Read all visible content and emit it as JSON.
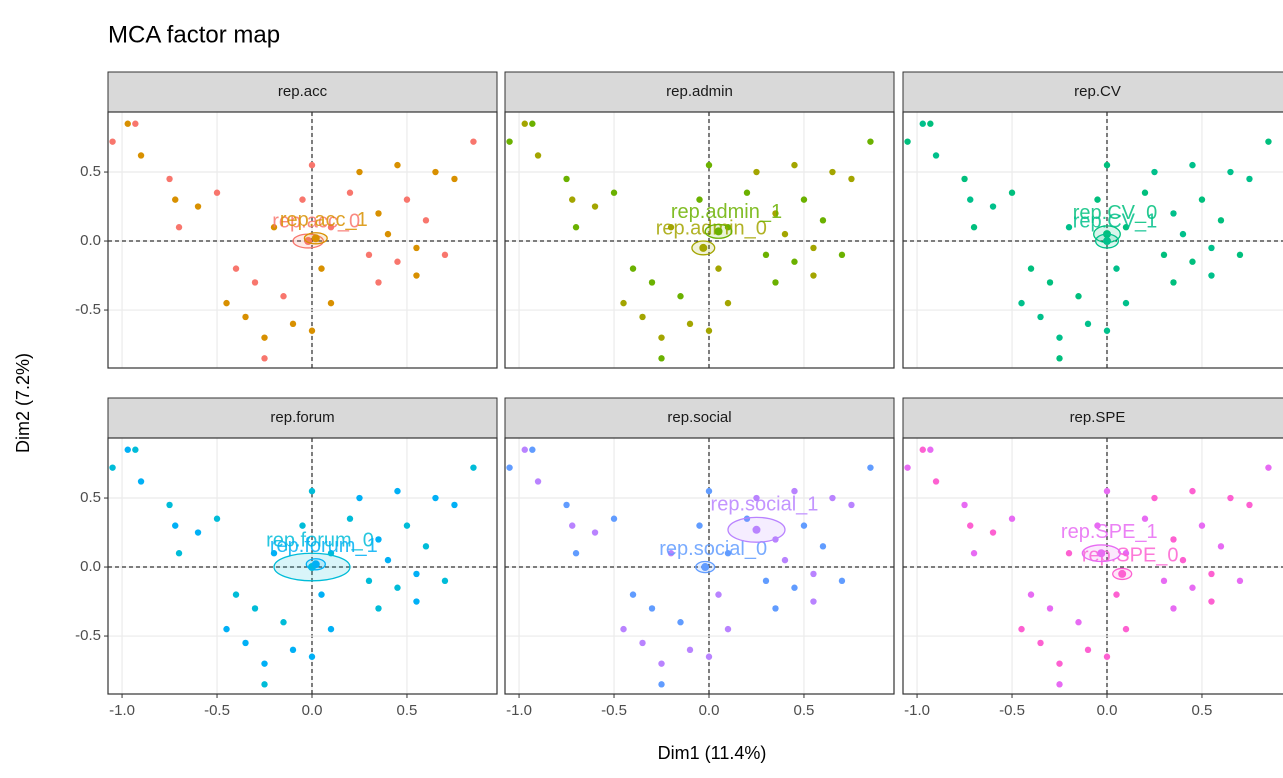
{
  "chart_data": {
    "type": "scatter",
    "title": "MCA factor map",
    "xlabel": "Dim1 (11.4%)",
    "ylabel": "Dim2 (7.2%)",
    "xlim": [
      -1.074,
      0.974
    ],
    "ylim": [
      -0.92,
      0.935
    ],
    "xticks": [
      {
        "value": -1,
        "label": "-1.0"
      },
      -0.5,
      {
        "value": 0,
        "label": "0.0"
      },
      0.5
    ],
    "yticks": [
      -0.5,
      {
        "value": 0,
        "label": "0.0"
      },
      0.5
    ],
    "facets": [
      {
        "title": "rep.acc",
        "series": [
          {
            "name": "rep.acc_0",
            "color": "#F8766D",
            "center": [
              -0.02,
              0.0
            ],
            "ellipse": [
              0.08,
              0.05
            ],
            "x": [
              -1.05,
              -0.93,
              -0.75,
              -0.7,
              -0.5,
              -0.4,
              -0.3,
              -0.25,
              -0.15,
              -0.05,
              0,
              0.1,
              0.2,
              0.3,
              0.35,
              0.45,
              0.5,
              0.6,
              0.7,
              0.85
            ],
            "y": [
              0.72,
              0.85,
              0.45,
              0.1,
              0.35,
              -0.2,
              -0.3,
              -0.85,
              -0.4,
              0.3,
              0.55,
              0.1,
              0.35,
              -0.1,
              -0.3,
              -0.15,
              0.3,
              0.15,
              -0.1,
              0.72
            ]
          },
          {
            "name": "rep.acc_1",
            "color": "#D89000",
            "center": [
              0.02,
              0.02
            ],
            "ellipse": [
              0.06,
              0.04
            ],
            "x": [
              -0.97,
              -0.9,
              -0.72,
              -0.6,
              -0.45,
              -0.35,
              -0.25,
              -0.2,
              -0.1,
              0,
              0.05,
              0.1,
              0.25,
              0.35,
              0.4,
              0.45,
              0.55,
              0.65,
              0.75,
              0.55
            ],
            "y": [
              0.85,
              0.62,
              0.3,
              0.25,
              -0.45,
              -0.55,
              -0.7,
              0.1,
              -0.6,
              -0.65,
              -0.2,
              -0.45,
              0.5,
              0.2,
              0.05,
              0.55,
              -0.05,
              0.5,
              0.45,
              -0.25
            ]
          }
        ]
      },
      {
        "title": "rep.admin",
        "series": [
          {
            "name": "rep.admin_0",
            "color": "#A3A500",
            "center": [
              -0.03,
              -0.05
            ],
            "ellipse": [
              0.06,
              0.05
            ],
            "x": [
              -0.97,
              -0.9,
              -0.72,
              -0.6,
              -0.45,
              -0.35,
              -0.25,
              -0.2,
              -0.1,
              0,
              0.05,
              0.1,
              0.25,
              0.35,
              0.4,
              0.45,
              0.55,
              0.65,
              0.75,
              0.55
            ],
            "y": [
              0.85,
              0.62,
              0.3,
              0.25,
              -0.45,
              -0.55,
              -0.7,
              0.1,
              -0.6,
              -0.65,
              -0.2,
              -0.45,
              0.5,
              0.2,
              0.05,
              0.55,
              -0.05,
              0.5,
              0.45,
              -0.25
            ]
          },
          {
            "name": "rep.admin_1",
            "color": "#6BB100",
            "center": [
              0.05,
              0.07
            ],
            "ellipse": [
              0.07,
              0.05
            ],
            "x": [
              -1.05,
              -0.93,
              -0.75,
              -0.7,
              -0.5,
              -0.4,
              -0.3,
              -0.25,
              -0.15,
              -0.05,
              0,
              0.1,
              0.2,
              0.3,
              0.35,
              0.45,
              0.5,
              0.6,
              0.7,
              0.85
            ],
            "y": [
              0.72,
              0.85,
              0.45,
              0.1,
              0.35,
              -0.2,
              -0.3,
              -0.85,
              -0.4,
              0.3,
              0.55,
              0.1,
              0.35,
              -0.1,
              -0.3,
              -0.15,
              0.3,
              0.15,
              -0.1,
              0.72
            ]
          }
        ]
      },
      {
        "title": "rep.CV",
        "series": [
          {
            "name": "rep.CV_0",
            "color": "#00BF7D",
            "center": [
              0.0,
              0.05
            ],
            "ellipse": [
              0.07,
              0.06
            ],
            "x": [
              -1.05,
              -0.93,
              -0.75,
              -0.7,
              -0.5,
              -0.4,
              -0.3,
              -0.25,
              -0.15,
              -0.05,
              0,
              0.1,
              0.2,
              0.3,
              0.35,
              0.45,
              0.5,
              0.6,
              0.7,
              0.85
            ],
            "y": [
              0.72,
              0.85,
              0.45,
              0.1,
              0.35,
              -0.2,
              -0.3,
              -0.85,
              -0.4,
              0.3,
              0.55,
              0.1,
              0.35,
              -0.1,
              -0.3,
              -0.15,
              0.3,
              0.15,
              -0.1,
              0.72
            ]
          },
          {
            "name": "rep.CV_1",
            "color": "#00C08B",
            "center": [
              0.0,
              0.0
            ],
            "ellipse": [
              0.06,
              0.05
            ],
            "x": [
              -0.97,
              -0.9,
              -0.72,
              -0.6,
              -0.45,
              -0.35,
              -0.25,
              -0.2,
              -0.1,
              0,
              0.05,
              0.1,
              0.25,
              0.35,
              0.4,
              0.45,
              0.55,
              0.65,
              0.75,
              0.55
            ],
            "y": [
              0.85,
              0.62,
              0.3,
              0.25,
              -0.45,
              -0.55,
              -0.7,
              0.1,
              -0.6,
              -0.65,
              -0.2,
              -0.45,
              0.5,
              0.2,
              0.05,
              0.55,
              -0.05,
              0.5,
              0.45,
              -0.25
            ]
          }
        ]
      },
      {
        "title": "rep.forum",
        "series": [
          {
            "name": "rep.forum_0",
            "color": "#00BCD8",
            "center": [
              0.0,
              0.0
            ],
            "ellipse": [
              0.2,
              0.1
            ],
            "x": [
              -1.05,
              -0.93,
              -0.75,
              -0.7,
              -0.5,
              -0.4,
              -0.3,
              -0.25,
              -0.15,
              -0.05,
              0,
              0.1,
              0.2,
              0.3,
              0.35,
              0.45,
              0.5,
              0.6,
              0.7,
              0.85
            ],
            "y": [
              0.72,
              0.85,
              0.45,
              0.1,
              0.35,
              -0.2,
              -0.3,
              -0.85,
              -0.4,
              0.3,
              0.55,
              0.1,
              0.35,
              -0.1,
              -0.3,
              -0.15,
              0.3,
              0.15,
              -0.1,
              0.72
            ]
          },
          {
            "name": "rep.forum_1",
            "color": "#00B0F6",
            "center": [
              0.02,
              0.02
            ],
            "ellipse": [
              0.05,
              0.04
            ],
            "x": [
              -0.97,
              -0.9,
              -0.72,
              -0.6,
              -0.45,
              -0.35,
              -0.25,
              -0.2,
              -0.1,
              0,
              0.05,
              0.1,
              0.25,
              0.35,
              0.4,
              0.45,
              0.55,
              0.65,
              0.75,
              0.55
            ],
            "y": [
              0.85,
              0.62,
              0.3,
              0.25,
              -0.45,
              -0.55,
              -0.7,
              0.1,
              -0.6,
              -0.65,
              -0.2,
              -0.45,
              0.5,
              0.2,
              0.05,
              0.55,
              -0.05,
              0.5,
              0.45,
              -0.25
            ]
          }
        ]
      },
      {
        "title": "rep.social",
        "series": [
          {
            "name": "rep.social_0",
            "color": "#619CFF",
            "center": [
              -0.02,
              0.0
            ],
            "ellipse": [
              0.05,
              0.04
            ],
            "x": [
              -1.05,
              -0.93,
              -0.75,
              -0.7,
              -0.5,
              -0.4,
              -0.3,
              -0.25,
              -0.15,
              -0.05,
              0,
              0.1,
              0.2,
              0.3,
              0.35,
              0.45,
              0.5,
              0.6,
              0.7,
              0.85
            ],
            "y": [
              0.72,
              0.85,
              0.45,
              0.1,
              0.35,
              -0.2,
              -0.3,
              -0.85,
              -0.4,
              0.3,
              0.55,
              0.1,
              0.35,
              -0.1,
              -0.3,
              -0.15,
              0.3,
              0.15,
              -0.1,
              0.72
            ]
          },
          {
            "name": "rep.social_1",
            "color": "#B983FF",
            "center": [
              0.25,
              0.27
            ],
            "ellipse": [
              0.15,
              0.09
            ],
            "x": [
              -0.97,
              -0.9,
              -0.72,
              -0.6,
              -0.45,
              -0.35,
              -0.25,
              -0.2,
              -0.1,
              0,
              0.05,
              0.1,
              0.25,
              0.35,
              0.4,
              0.45,
              0.55,
              0.65,
              0.75,
              0.55
            ],
            "y": [
              0.85,
              0.62,
              0.3,
              0.25,
              -0.45,
              -0.55,
              -0.7,
              0.1,
              -0.6,
              -0.65,
              -0.2,
              -0.45,
              0.5,
              0.2,
              0.05,
              0.55,
              -0.05,
              0.5,
              0.45,
              -0.25
            ]
          }
        ]
      },
      {
        "title": "rep.SPE",
        "series": [
          {
            "name": "rep.SPE_0",
            "color": "#FD61D1",
            "center": [
              0.08,
              -0.05
            ],
            "ellipse": [
              0.05,
              0.04
            ],
            "x": [
              -0.97,
              -0.9,
              -0.72,
              -0.6,
              -0.45,
              -0.35,
              -0.25,
              -0.2,
              -0.1,
              0,
              0.05,
              0.1,
              0.25,
              0.35,
              0.4,
              0.45,
              0.55,
              0.65,
              0.75,
              0.55
            ],
            "y": [
              0.85,
              0.62,
              0.3,
              0.25,
              -0.45,
              -0.55,
              -0.7,
              0.1,
              -0.6,
              -0.65,
              -0.2,
              -0.45,
              0.5,
              0.2,
              0.05,
              0.55,
              -0.05,
              0.5,
              0.45,
              -0.25
            ]
          },
          {
            "name": "rep.SPE_1",
            "color": "#E76BF3",
            "center": [
              -0.03,
              0.1
            ],
            "ellipse": [
              0.1,
              0.06
            ],
            "x": [
              -1.05,
              -0.93,
              -0.75,
              -0.7,
              -0.5,
              -0.4,
              -0.3,
              -0.25,
              -0.15,
              -0.05,
              0,
              0.1,
              0.2,
              0.3,
              0.35,
              0.45,
              0.5,
              0.6,
              0.7,
              0.85
            ],
            "y": [
              0.72,
              0.85,
              0.45,
              0.1,
              0.35,
              -0.2,
              -0.3,
              -0.85,
              -0.4,
              0.3,
              0.55,
              0.1,
              0.35,
              -0.1,
              -0.3,
              -0.15,
              0.3,
              0.15,
              -0.1,
              0.72
            ]
          }
        ]
      }
    ]
  }
}
